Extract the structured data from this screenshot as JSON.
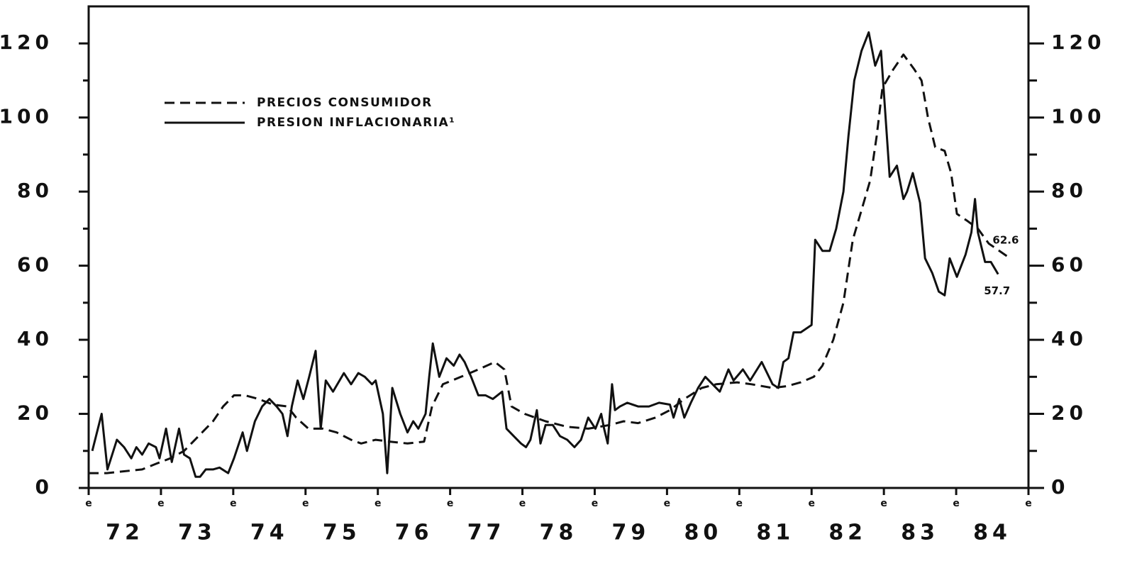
{
  "chart_data": {
    "type": "line",
    "series": [
      {
        "name": "PRECIOS CONSUMIDOR",
        "color": "#111111",
        "dash": true,
        "end_label": "62.6",
        "x": [
          72.0,
          72.25,
          72.49,
          72.74,
          72.93,
          73.13,
          73.32,
          73.52,
          73.72,
          73.86,
          74.01,
          74.16,
          74.35,
          74.55,
          74.75,
          74.87,
          75.04,
          75.24,
          75.43,
          75.63,
          75.77,
          75.97,
          76.17,
          76.41,
          76.64,
          76.75,
          76.9,
          77.15,
          77.39,
          77.62,
          77.75,
          77.85,
          78.03,
          78.32,
          78.62,
          78.91,
          79.21,
          79.4,
          79.6,
          79.84,
          80.04,
          80.24,
          80.48,
          80.68,
          80.97,
          81.17,
          81.46,
          81.66,
          81.85,
          82.03,
          82.15,
          82.3,
          82.44,
          82.57,
          82.69,
          82.81,
          82.9,
          82.98,
          83.13,
          83.27,
          83.42,
          83.52,
          83.61,
          83.71,
          83.84,
          83.93,
          84.01,
          84.16,
          84.3,
          84.45,
          84.7
        ],
        "values": [
          4,
          4,
          4.5,
          5,
          6.5,
          8,
          10,
          14,
          18,
          22,
          25,
          25,
          24,
          22.5,
          22,
          19,
          16,
          16,
          15,
          13,
          12,
          13,
          12.5,
          12,
          12.5,
          22,
          28,
          30,
          32,
          34,
          32,
          22,
          20,
          18,
          16.5,
          16,
          17,
          18,
          17.5,
          19,
          21,
          24,
          27,
          28,
          28.5,
          28,
          27,
          27.5,
          28.5,
          30,
          33,
          40,
          50,
          67,
          75,
          83,
          95,
          108,
          113,
          117,
          113,
          110,
          100,
          92,
          91,
          85,
          74,
          72,
          70,
          66,
          62.6
        ]
      },
      {
        "name": "PRESION INFLACIONARIA¹",
        "color": "#111111",
        "dash": false,
        "end_label": "57.7",
        "x": [
          72.05,
          72.18,
          72.26,
          72.39,
          72.49,
          72.59,
          72.66,
          72.74,
          72.83,
          72.93,
          72.98,
          73.07,
          73.15,
          73.25,
          73.32,
          73.4,
          73.48,
          73.54,
          73.62,
          73.72,
          73.81,
          73.93,
          74.01,
          74.13,
          74.19,
          74.3,
          74.4,
          74.5,
          74.6,
          74.68,
          74.75,
          74.81,
          74.89,
          74.97,
          75.05,
          75.14,
          75.21,
          75.28,
          75.38,
          75.53,
          75.63,
          75.73,
          75.82,
          75.92,
          75.97,
          76.07,
          76.13,
          76.2,
          76.31,
          76.41,
          76.49,
          76.56,
          76.66,
          76.71,
          76.76,
          76.85,
          76.95,
          77.05,
          77.13,
          77.2,
          77.29,
          77.39,
          77.49,
          77.59,
          77.72,
          77.78,
          77.88,
          77.98,
          78.05,
          78.11,
          78.2,
          78.25,
          78.32,
          78.42,
          78.52,
          78.62,
          78.72,
          78.81,
          78.91,
          79.01,
          79.09,
          79.13,
          79.18,
          79.24,
          79.28,
          79.35,
          79.45,
          79.6,
          79.75,
          79.89,
          80.04,
          80.09,
          80.17,
          80.24,
          80.33,
          80.43,
          80.53,
          80.63,
          80.73,
          80.85,
          80.92,
          81.05,
          81.15,
          81.31,
          81.46,
          81.54,
          81.61,
          81.68,
          81.75,
          81.85,
          82.0,
          82.05,
          82.15,
          82.25,
          82.34,
          82.44,
          82.51,
          82.59,
          82.69,
          82.79,
          82.88,
          82.96,
          83.08,
          83.18,
          83.27,
          83.32,
          83.4,
          83.5,
          83.57,
          83.67,
          83.76,
          83.84,
          83.91,
          84.01,
          84.13,
          84.21,
          84.26,
          84.3,
          84.4,
          84.48,
          84.58
        ],
        "values": [
          10,
          20,
          5,
          13,
          11,
          8,
          11,
          9,
          12,
          11,
          8,
          16,
          7,
          16,
          9,
          8,
          3,
          3,
          5,
          5,
          5.5,
          4,
          8,
          15,
          10,
          18,
          22,
          24,
          22,
          20,
          14,
          22,
          29,
          24,
          30,
          37,
          16,
          29,
          26,
          31,
          28,
          31,
          30,
          28,
          29,
          20,
          4,
          27,
          20,
          15,
          18,
          16,
          20,
          30,
          39,
          30,
          35,
          33,
          36,
          34,
          30,
          25,
          25,
          24,
          26,
          16,
          14,
          12,
          11,
          13,
          21,
          12,
          17,
          17,
          14,
          13,
          11,
          13,
          19,
          16,
          20,
          16,
          12,
          28,
          21,
          22,
          23,
          22,
          22,
          23,
          22.5,
          19,
          24,
          19,
          23,
          27,
          30,
          28,
          26,
          32,
          29,
          32,
          29,
          34,
          28,
          27,
          34,
          35,
          42,
          42,
          44,
          67,
          64,
          64,
          70,
          80,
          95,
          110,
          118,
          123,
          114,
          118,
          84,
          87,
          78,
          80,
          85,
          77,
          62,
          58,
          53,
          52,
          62,
          57,
          63,
          69,
          78,
          69,
          61,
          61,
          57.7
        ]
      }
    ],
    "xlim": [
      72,
      85
    ],
    "xticks": [
      {
        "value": 72,
        "label": "e"
      },
      {
        "value": 73,
        "label": "e"
      },
      {
        "value": 74,
        "label": "e"
      },
      {
        "value": 75,
        "label": "e"
      },
      {
        "value": 76,
        "label": "e"
      },
      {
        "value": 77,
        "label": "e"
      },
      {
        "value": 78,
        "label": "e"
      },
      {
        "value": 79,
        "label": "e"
      },
      {
        "value": 80,
        "label": "e"
      },
      {
        "value": 81,
        "label": "e"
      },
      {
        "value": 82,
        "label": "e"
      },
      {
        "value": 83,
        "label": "e"
      },
      {
        "value": 84,
        "label": "e"
      },
      {
        "value": 85,
        "label": "e"
      }
    ],
    "year_labels": [
      {
        "value": 72.5,
        "label": "72"
      },
      {
        "value": 73.5,
        "label": "73"
      },
      {
        "value": 74.5,
        "label": "74"
      },
      {
        "value": 75.5,
        "label": "75"
      },
      {
        "value": 76.5,
        "label": "76"
      },
      {
        "value": 77.5,
        "label": "77"
      },
      {
        "value": 78.5,
        "label": "78"
      },
      {
        "value": 79.5,
        "label": "79"
      },
      {
        "value": 80.5,
        "label": "80"
      },
      {
        "value": 81.5,
        "label": "81"
      },
      {
        "value": 82.5,
        "label": "82"
      },
      {
        "value": 83.5,
        "label": "83"
      },
      {
        "value": 84.5,
        "label": "84"
      }
    ],
    "ylim": [
      0,
      130
    ],
    "yticks": [
      0,
      20,
      40,
      60,
      80,
      100,
      120
    ],
    "minor_yticks": [
      10,
      30,
      50,
      70,
      90,
      110
    ],
    "y2lim": [
      0,
      130
    ],
    "y2ticks": [
      0,
      20,
      40,
      60,
      80,
      100,
      120
    ],
    "legend": "upper left"
  }
}
